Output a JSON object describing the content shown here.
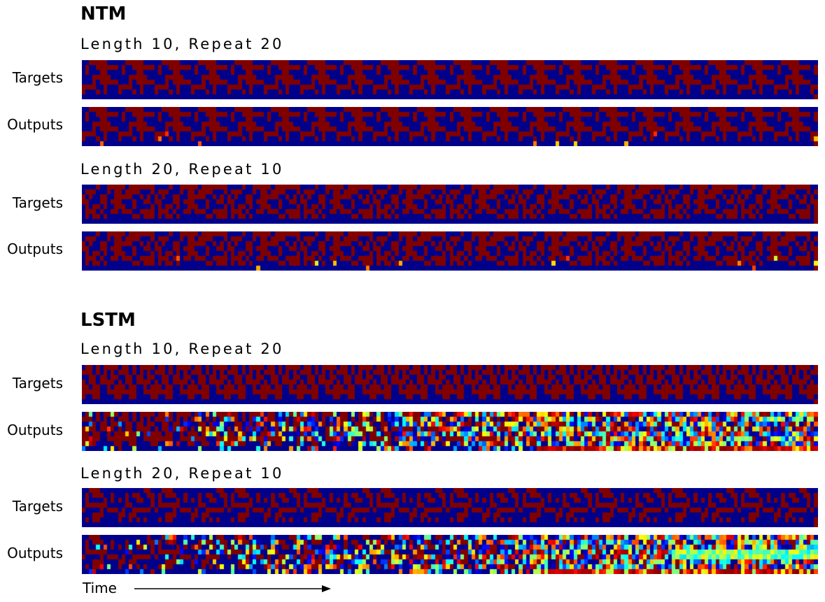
{
  "colormap": "jet",
  "colors": {
    "low": "#00008b",
    "high": "#800000",
    "background": "#ffffff",
    "text": "#000000"
  },
  "sections": [
    {
      "title": "NTM",
      "configs": [
        {
          "title": "Length 10, Repeat 20",
          "rows": [
            {
              "label": "Targets",
              "kind": "target"
            },
            {
              "label": "Outputs",
              "kind": "output"
            }
          ],
          "outputs_quality": "accurate"
        },
        {
          "title": "Length 20, Repeat 10",
          "rows": [
            {
              "label": "Targets",
              "kind": "target"
            },
            {
              "label": "Outputs",
              "kind": "output"
            }
          ],
          "outputs_quality": "accurate"
        }
      ]
    },
    {
      "title": "LSTM",
      "configs": [
        {
          "title": "Length 10, Repeat 20",
          "rows": [
            {
              "label": "Targets",
              "kind": "target"
            },
            {
              "label": "Outputs",
              "kind": "output"
            }
          ],
          "outputs_quality": "degrading"
        },
        {
          "title": "Length 20, Repeat 10",
          "rows": [
            {
              "label": "Targets",
              "kind": "target"
            },
            {
              "label": "Outputs",
              "kind": "output"
            }
          ],
          "outputs_quality": "degrading"
        }
      ]
    }
  ],
  "time_axis": {
    "label": "Time",
    "arrow_icon": "right-arrow-icon"
  }
}
